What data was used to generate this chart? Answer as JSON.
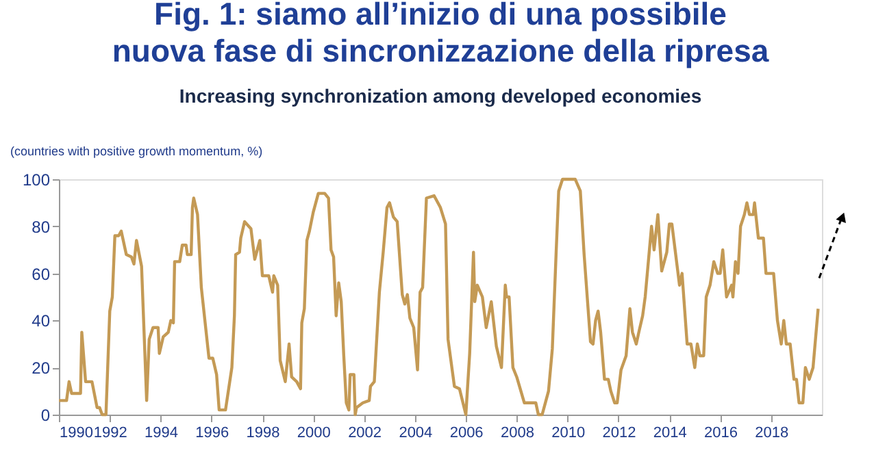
{
  "chart_data": {
    "type": "line",
    "title": [
      "Fig. 1: siamo all’inizio di una possibile",
      "nuova fase di sincronizzazione della ripresa"
    ],
    "subtitle": "Increasing synchronization among developed economies",
    "ylabel": "(countries with positive growth momentum, %)",
    "xlim": [
      1990,
      2020
    ],
    "xticks": [
      1990,
      1992,
      1994,
      1996,
      1998,
      2000,
      2002,
      2004,
      2006,
      2008,
      2010,
      2012,
      2014,
      2016,
      2018
    ],
    "ylim": [
      0,
      100
    ],
    "yticks": [
      0,
      20,
      40,
      60,
      80,
      100
    ],
    "grid": false,
    "marker": "none",
    "line_style": "solid",
    "series": [
      {
        "color": "#c49a55",
        "x": [
          1990.0,
          1990.3,
          1990.4,
          1990.5,
          1990.85,
          1990.9,
          1991.05,
          1991.3,
          1991.5,
          1991.6,
          1991.7,
          1991.85,
          1992.0,
          1992.1,
          1992.2,
          1992.35,
          1992.45,
          1992.65,
          1992.85,
          1992.95,
          1993.05,
          1993.25,
          1993.45,
          1993.55,
          1993.7,
          1993.9,
          1993.95,
          1994.1,
          1994.3,
          1994.4,
          1994.5,
          1994.55,
          1994.75,
          1994.85,
          1995.0,
          1995.05,
          1995.2,
          1995.25,
          1995.3,
          1995.45,
          1995.6,
          1995.9,
          1996.05,
          1996.2,
          1996.3,
          1996.55,
          1996.8,
          1996.9,
          1996.95,
          1997.1,
          1997.15,
          1997.3,
          1997.55,
          1997.7,
          1997.9,
          1998.0,
          1998.25,
          1998.4,
          1998.45,
          1998.6,
          1998.7,
          1998.9,
          1999.05,
          1999.15,
          1999.35,
          1999.5,
          1999.55,
          1999.65,
          1999.75,
          1999.85,
          2000.0,
          2000.2,
          2000.45,
          2000.6,
          2000.7,
          2000.8,
          2000.9,
          2001.0,
          2001.1,
          2001.2,
          2001.3,
          2001.4,
          2001.45,
          2001.6,
          2001.65,
          2001.7,
          2001.95,
          2002.2,
          2002.25,
          2002.4,
          2002.6,
          2002.75,
          2002.9,
          2003.0,
          2003.15,
          2003.3,
          2003.5,
          2003.6,
          2003.7,
          2003.8,
          2003.95,
          2004.1,
          2004.2,
          2004.3,
          2004.45,
          2004.75,
          2005.0,
          2005.2,
          2005.3,
          2005.55,
          2005.75,
          2006.0,
          2006.15,
          2006.3,
          2006.35,
          2006.45,
          2006.65,
          2006.8,
          2007.0,
          2007.2,
          2007.4,
          2007.55,
          2007.6,
          2007.7,
          2007.85,
          2008.0,
          2008.3,
          2008.75,
          2008.85,
          2009.0,
          2009.25,
          2009.4,
          2009.55,
          2009.65,
          2009.8,
          2010.3,
          2010.5,
          2010.65,
          2010.9,
          2011.0,
          2011.1,
          2011.2,
          2011.3,
          2011.45,
          2011.6,
          2011.7,
          2011.85,
          2011.95,
          2012.1,
          2012.3,
          2012.45,
          2012.55,
          2012.7,
          2012.8,
          2012.95,
          2013.05,
          2013.3,
          2013.4,
          2013.55,
          2013.7,
          2013.9,
          2014.0,
          2014.1,
          2014.4,
          2014.5,
          2014.7,
          2014.85,
          2015.0,
          2015.1,
          2015.2,
          2015.35,
          2015.45,
          2015.6,
          2015.75,
          2015.9,
          2016.0,
          2016.1,
          2016.25,
          2016.45,
          2016.5,
          2016.6,
          2016.7,
          2016.8,
          2016.95,
          2017.05,
          2017.15,
          2017.3,
          2017.35,
          2017.5,
          2017.7,
          2017.8,
          2017.9,
          2018.1,
          2018.25,
          2018.4,
          2018.5,
          2018.6,
          2018.75,
          2018.9,
          2019.0,
          2019.1,
          2019.25,
          2019.35,
          2019.5,
          2019.65,
          2019.85
        ],
        "values": [
          6,
          6,
          14,
          9,
          9,
          35,
          14,
          14,
          3,
          3,
          0,
          0,
          44,
          50,
          76,
          76,
          78,
          68,
          67,
          64,
          74,
          63,
          6,
          32,
          37,
          37,
          26,
          33,
          35,
          40,
          39,
          65,
          65,
          72,
          72,
          68,
          68,
          88,
          92,
          85,
          54,
          24,
          24,
          17,
          2,
          2,
          20,
          42,
          68,
          69,
          75,
          82,
          79,
          66,
          74,
          59,
          59,
          52,
          59,
          55,
          23,
          14,
          30,
          16,
          14,
          11,
          39,
          45,
          74,
          78,
          86,
          94,
          94,
          92,
          70,
          67,
          42,
          56,
          48,
          25,
          5,
          2,
          17,
          17,
          0,
          3,
          5,
          6,
          12,
          14,
          52,
          69,
          88,
          90,
          84,
          82,
          51,
          47,
          51,
          41,
          37,
          19,
          52,
          54,
          92,
          93,
          88,
          81,
          32,
          12,
          11,
          0,
          26,
          69,
          48,
          55,
          50,
          37,
          48,
          29,
          20,
          55,
          50,
          50,
          20,
          16,
          5,
          5,
          0,
          0,
          10,
          28,
          69,
          95,
          100,
          100,
          95,
          68,
          31,
          30,
          40,
          44,
          35,
          15,
          15,
          10,
          5,
          5,
          19,
          25,
          45,
          35,
          30,
          35,
          42,
          50,
          80,
          70,
          85,
          61,
          69,
          81,
          81,
          55,
          60,
          30,
          30,
          20,
          30,
          25,
          25,
          50,
          55,
          65,
          60,
          60,
          70,
          50,
          55,
          50,
          65,
          60,
          80,
          85,
          90,
          85,
          85,
          90,
          75,
          75,
          60,
          60,
          60,
          40,
          30,
          40,
          30,
          30,
          15,
          15,
          5,
          5,
          20,
          15,
          20,
          45
        ]
      }
    ]
  }
}
